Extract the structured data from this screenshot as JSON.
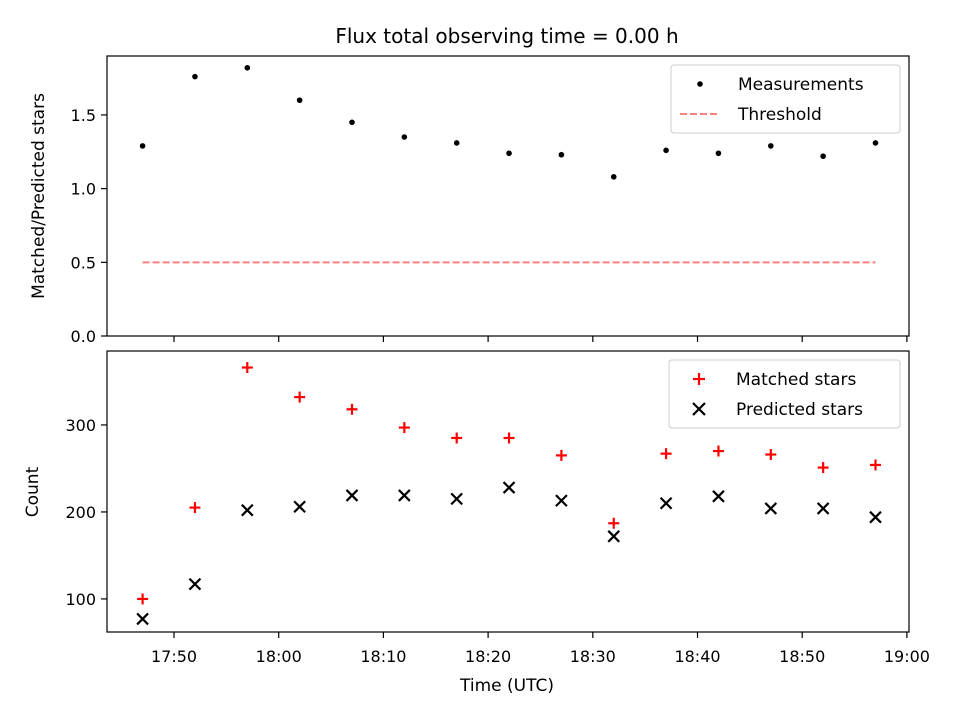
{
  "title": "Flux total observing time = 0.00 h",
  "chart_data": [
    {
      "type": "scatter",
      "ylabel": "Matched/Predicted stars",
      "ylim": [
        0,
        1.9
      ],
      "yticks": [
        0.0,
        0.5,
        1.0,
        1.5
      ],
      "ytick_labels": [
        "0.0",
        "0.5",
        "1.0",
        "1.5"
      ],
      "x": [
        "17:47",
        "17:52",
        "17:57",
        "18:02",
        "18:07",
        "18:12",
        "18:17",
        "18:22",
        "18:27",
        "18:32",
        "18:37",
        "18:42",
        "18:47",
        "18:52",
        "18:57"
      ],
      "series": [
        {
          "name": "Measurements",
          "marker": "dot",
          "color": "#000000",
          "values": [
            1.29,
            1.76,
            1.82,
            1.6,
            1.45,
            1.35,
            1.31,
            1.24,
            1.23,
            1.08,
            1.26,
            1.24,
            1.29,
            1.22,
            1.31
          ]
        },
        {
          "name": "Threshold",
          "marker": "dashed-line",
          "color": "#ff7f7f",
          "values": [
            0.5,
            0.5
          ],
          "x": [
            "17:47",
            "18:57"
          ]
        }
      ],
      "legend": "top-right",
      "grid": false
    },
    {
      "type": "scatter",
      "xlabel": "Time (UTC)",
      "ylabel": "Count",
      "ylim": [
        62,
        385
      ],
      "yticks": [
        100,
        200,
        300
      ],
      "ytick_labels": [
        "100",
        "200",
        "300"
      ],
      "xticks": [
        "17:50",
        "18:00",
        "18:10",
        "18:20",
        "18:30",
        "18:40",
        "18:50",
        "19:00"
      ],
      "x": [
        "17:47",
        "17:52",
        "17:57",
        "18:02",
        "18:07",
        "18:12",
        "18:17",
        "18:22",
        "18:27",
        "18:32",
        "18:37",
        "18:42",
        "18:47",
        "18:52",
        "18:57"
      ],
      "series": [
        {
          "name": "Matched stars",
          "marker": "plus",
          "color": "#ff0000",
          "values": [
            100,
            205,
            366,
            332,
            318,
            297,
            285,
            285,
            265,
            187,
            267,
            270,
            266,
            251,
            254
          ]
        },
        {
          "name": "Predicted stars",
          "marker": "x",
          "color": "#000000",
          "values": [
            77,
            117,
            202,
            206,
            219,
            219,
            215,
            228,
            213,
            172,
            210,
            218,
            204,
            204,
            194
          ]
        }
      ],
      "legend": "top-right",
      "grid": false
    }
  ]
}
